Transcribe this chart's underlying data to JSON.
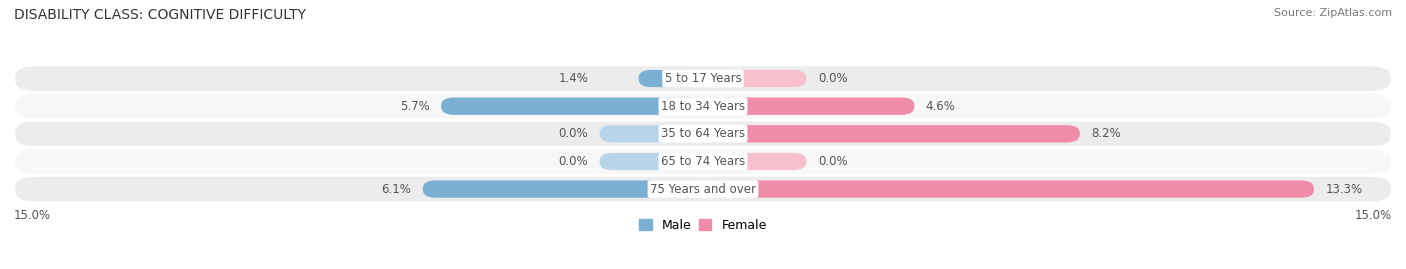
{
  "title": "DISABILITY CLASS: COGNITIVE DIFFICULTY",
  "source": "Source: ZipAtlas.com",
  "categories": [
    "5 to 17 Years",
    "18 to 34 Years",
    "35 to 64 Years",
    "65 to 74 Years",
    "75 Years and over"
  ],
  "male_values": [
    1.4,
    5.7,
    0.0,
    0.0,
    6.1
  ],
  "female_values": [
    0.0,
    4.6,
    8.2,
    0.0,
    13.3
  ],
  "max_val": 15.0,
  "male_color": "#7bafd4",
  "female_color": "#f08caa",
  "male_color_light": "#b8d4e8",
  "female_color_light": "#f7c0cf",
  "row_bg_odd": "#ececec",
  "row_bg_even": "#f7f7f7",
  "label_color": "#555555",
  "title_color": "#333333",
  "title_fontsize": 10,
  "label_fontsize": 8.5,
  "source_fontsize": 8,
  "axis_label_fontsize": 8.5,
  "legend_fontsize": 9
}
